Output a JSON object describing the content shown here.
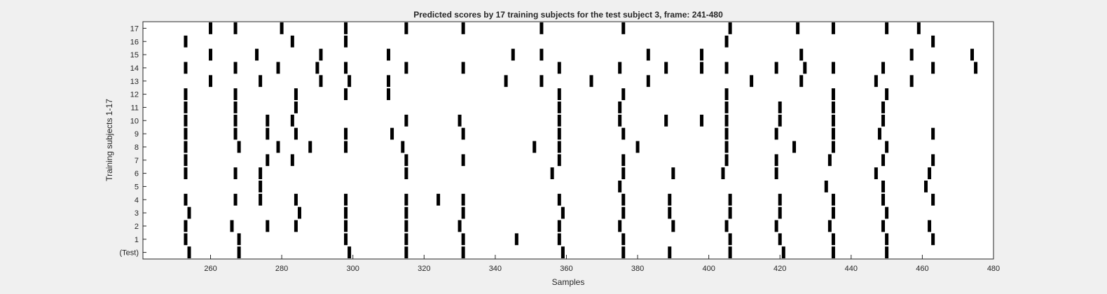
{
  "chart_data": {
    "type": "raster",
    "title": "Predicted scores by 17 training subjects for the test subject 3, frame: 241-480",
    "xlabel": "Samples",
    "ylabel": "Training subjects 1-17",
    "xlim": [
      241,
      480
    ],
    "xticks": [
      260,
      280,
      300,
      320,
      340,
      360,
      380,
      400,
      420,
      440,
      460,
      480
    ],
    "grid": false,
    "legend": "none",
    "colors": {
      "mark": "#000000",
      "plot_background": "#ffffff",
      "figure_background": "#f0f0f0"
    },
    "rows": [
      {
        "label": "17",
        "x": [
          260,
          267,
          280,
          298,
          315,
          331,
          353,
          376,
          406,
          425,
          435,
          450,
          459
        ]
      },
      {
        "label": "16",
        "x": [
          253,
          283,
          298,
          405,
          463
        ]
      },
      {
        "label": "15",
        "x": [
          260,
          273,
          291,
          310,
          345,
          353,
          383,
          398,
          426,
          457,
          474
        ]
      },
      {
        "label": "14",
        "x": [
          253,
          267,
          279,
          290,
          298,
          315,
          331,
          358,
          375,
          388,
          398,
          405,
          419,
          427,
          435,
          449,
          463,
          475
        ]
      },
      {
        "label": "13",
        "x": [
          260,
          274,
          291,
          299,
          310,
          343,
          353,
          367,
          383,
          412,
          426,
          447,
          457
        ]
      },
      {
        "label": "12",
        "x": [
          253,
          267,
          284,
          298,
          310,
          358,
          376,
          405,
          435,
          450
        ]
      },
      {
        "label": "11",
        "x": [
          253,
          267,
          284,
          358,
          375,
          405,
          420,
          435,
          449
        ]
      },
      {
        "label": "10",
        "x": [
          253,
          267,
          276,
          283,
          315,
          330,
          358,
          375,
          388,
          398,
          405,
          420,
          435,
          449
        ]
      },
      {
        "label": "9",
        "x": [
          253,
          267,
          276,
          284,
          298,
          311,
          331,
          358,
          376,
          405,
          419,
          435,
          448,
          463
        ]
      },
      {
        "label": "8",
        "x": [
          253,
          268,
          279,
          288,
          298,
          314,
          351,
          358,
          380,
          405,
          424,
          435,
          450
        ]
      },
      {
        "label": "7",
        "x": [
          253,
          276,
          283,
          315,
          331,
          358,
          376,
          405,
          419,
          434,
          449,
          463
        ]
      },
      {
        "label": "6",
        "x": [
          253,
          267,
          274,
          315,
          356,
          376,
          390,
          404,
          419,
          447,
          462
        ]
      },
      {
        "label": "5",
        "x": [
          274,
          375,
          433,
          449,
          461
        ]
      },
      {
        "label": "4",
        "x": [
          253,
          267,
          274,
          284,
          298,
          315,
          324,
          331,
          358,
          376,
          389,
          406,
          420,
          435,
          449,
          463
        ]
      },
      {
        "label": "3",
        "x": [
          254,
          285,
          298,
          315,
          331,
          359,
          376,
          389,
          406,
          420,
          435,
          450
        ]
      },
      {
        "label": "2",
        "x": [
          253,
          266,
          276,
          284,
          298,
          315,
          330,
          358,
          375,
          390,
          405,
          419,
          434,
          449,
          462
        ]
      },
      {
        "label": "1",
        "x": [
          253,
          268,
          298,
          315,
          331,
          346,
          358,
          376,
          406,
          420,
          435,
          450,
          463
        ]
      },
      {
        "label": "(Test)",
        "x": [
          254,
          268,
          299,
          315,
          331,
          359,
          376,
          389,
          406,
          421,
          435,
          450
        ]
      }
    ]
  }
}
